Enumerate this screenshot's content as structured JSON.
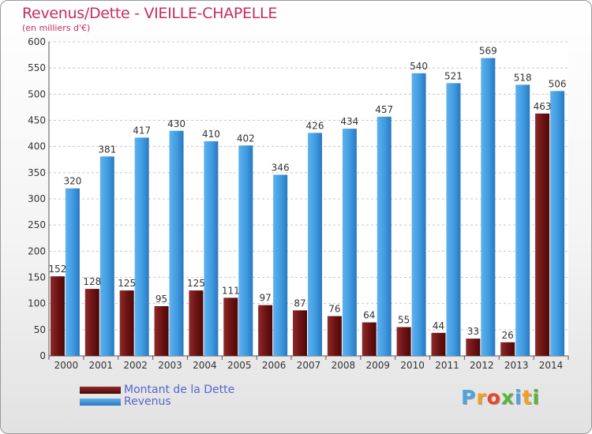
{
  "title": "Revenus/Dette - VIEILLE-CHAPELLE",
  "subtitle": "(en milliers d'€)",
  "logo": {
    "text": "Proxiti",
    "letters": [
      "P",
      "r",
      "o",
      "x",
      "i",
      "t",
      "i"
    ],
    "colors": [
      "#4fa3de",
      "#f0a020",
      "#e8452c",
      "#5ab43c",
      "#4fa3de",
      "#f0a020",
      "#5ab43c"
    ]
  },
  "chart_data": {
    "type": "bar",
    "categories": [
      "2000",
      "2001",
      "2002",
      "2003",
      "2004",
      "2005",
      "2006",
      "2007",
      "2008",
      "2009",
      "2010",
      "2011",
      "2012",
      "2013",
      "2014"
    ],
    "series": [
      {
        "name": "Montant de la Dette",
        "color": "#7a1c1c",
        "values": [
          152,
          128,
          125,
          95,
          125,
          111,
          97,
          87,
          76,
          64,
          55,
          44,
          33,
          26,
          463
        ]
      },
      {
        "name": "Revenus",
        "color": "#3f9ae0",
        "values": [
          320,
          381,
          417,
          430,
          410,
          402,
          346,
          426,
          434,
          457,
          540,
          521,
          569,
          518,
          506
        ]
      }
    ],
    "yticks": [
      "0",
      "50",
      "100",
      "150",
      "200",
      "250",
      "300",
      "350",
      "400",
      "450",
      "500",
      "550",
      "600"
    ],
    "ylim": [
      0,
      600
    ],
    "grid": true,
    "legend": "bottom-left"
  }
}
